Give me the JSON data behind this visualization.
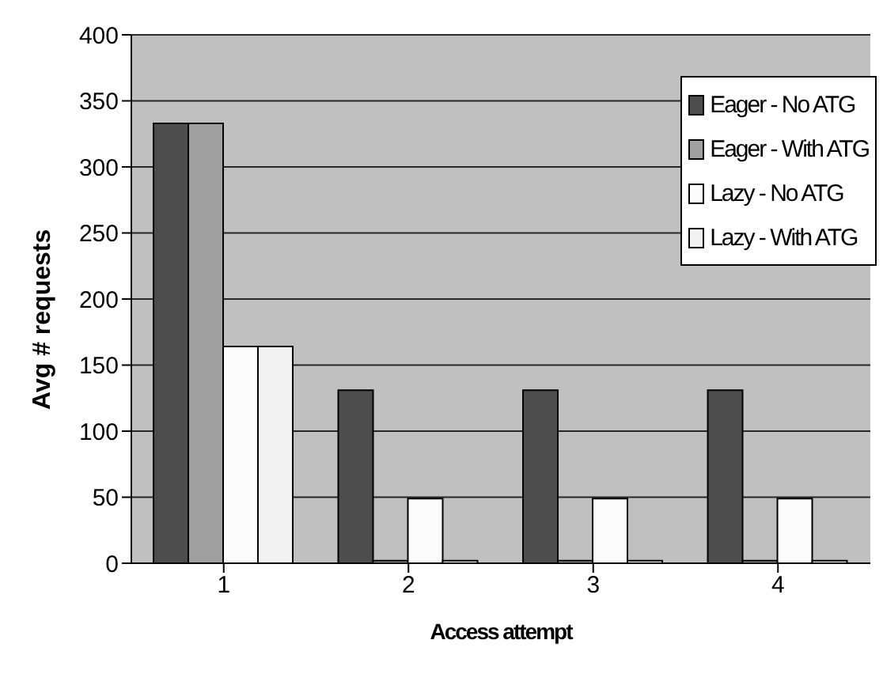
{
  "chart_data": {
    "type": "bar",
    "xlabel": "Access attempt",
    "ylabel": "Avg # requests",
    "categories": [
      "1",
      "2",
      "3",
      "4"
    ],
    "series": [
      {
        "name": "Eager - No ATG",
        "color": "#4d4d4d",
        "values": [
          333,
          131,
          131,
          131
        ]
      },
      {
        "name": "Eager - With ATG",
        "color": "#a0a0a0",
        "values": [
          333,
          2,
          2,
          2
        ]
      },
      {
        "name": "Lazy - No ATG",
        "color": "#fcfcfc",
        "values": [
          164,
          49,
          49,
          49
        ]
      },
      {
        "name": "Lazy - With ATG",
        "color": "#f2f2f2",
        "values": [
          164,
          2,
          2,
          2
        ]
      }
    ],
    "ylim": [
      0,
      400
    ],
    "yticks": [
      0,
      50,
      100,
      150,
      200,
      250,
      300,
      350,
      400
    ],
    "grid": "y",
    "legend": "top right"
  }
}
